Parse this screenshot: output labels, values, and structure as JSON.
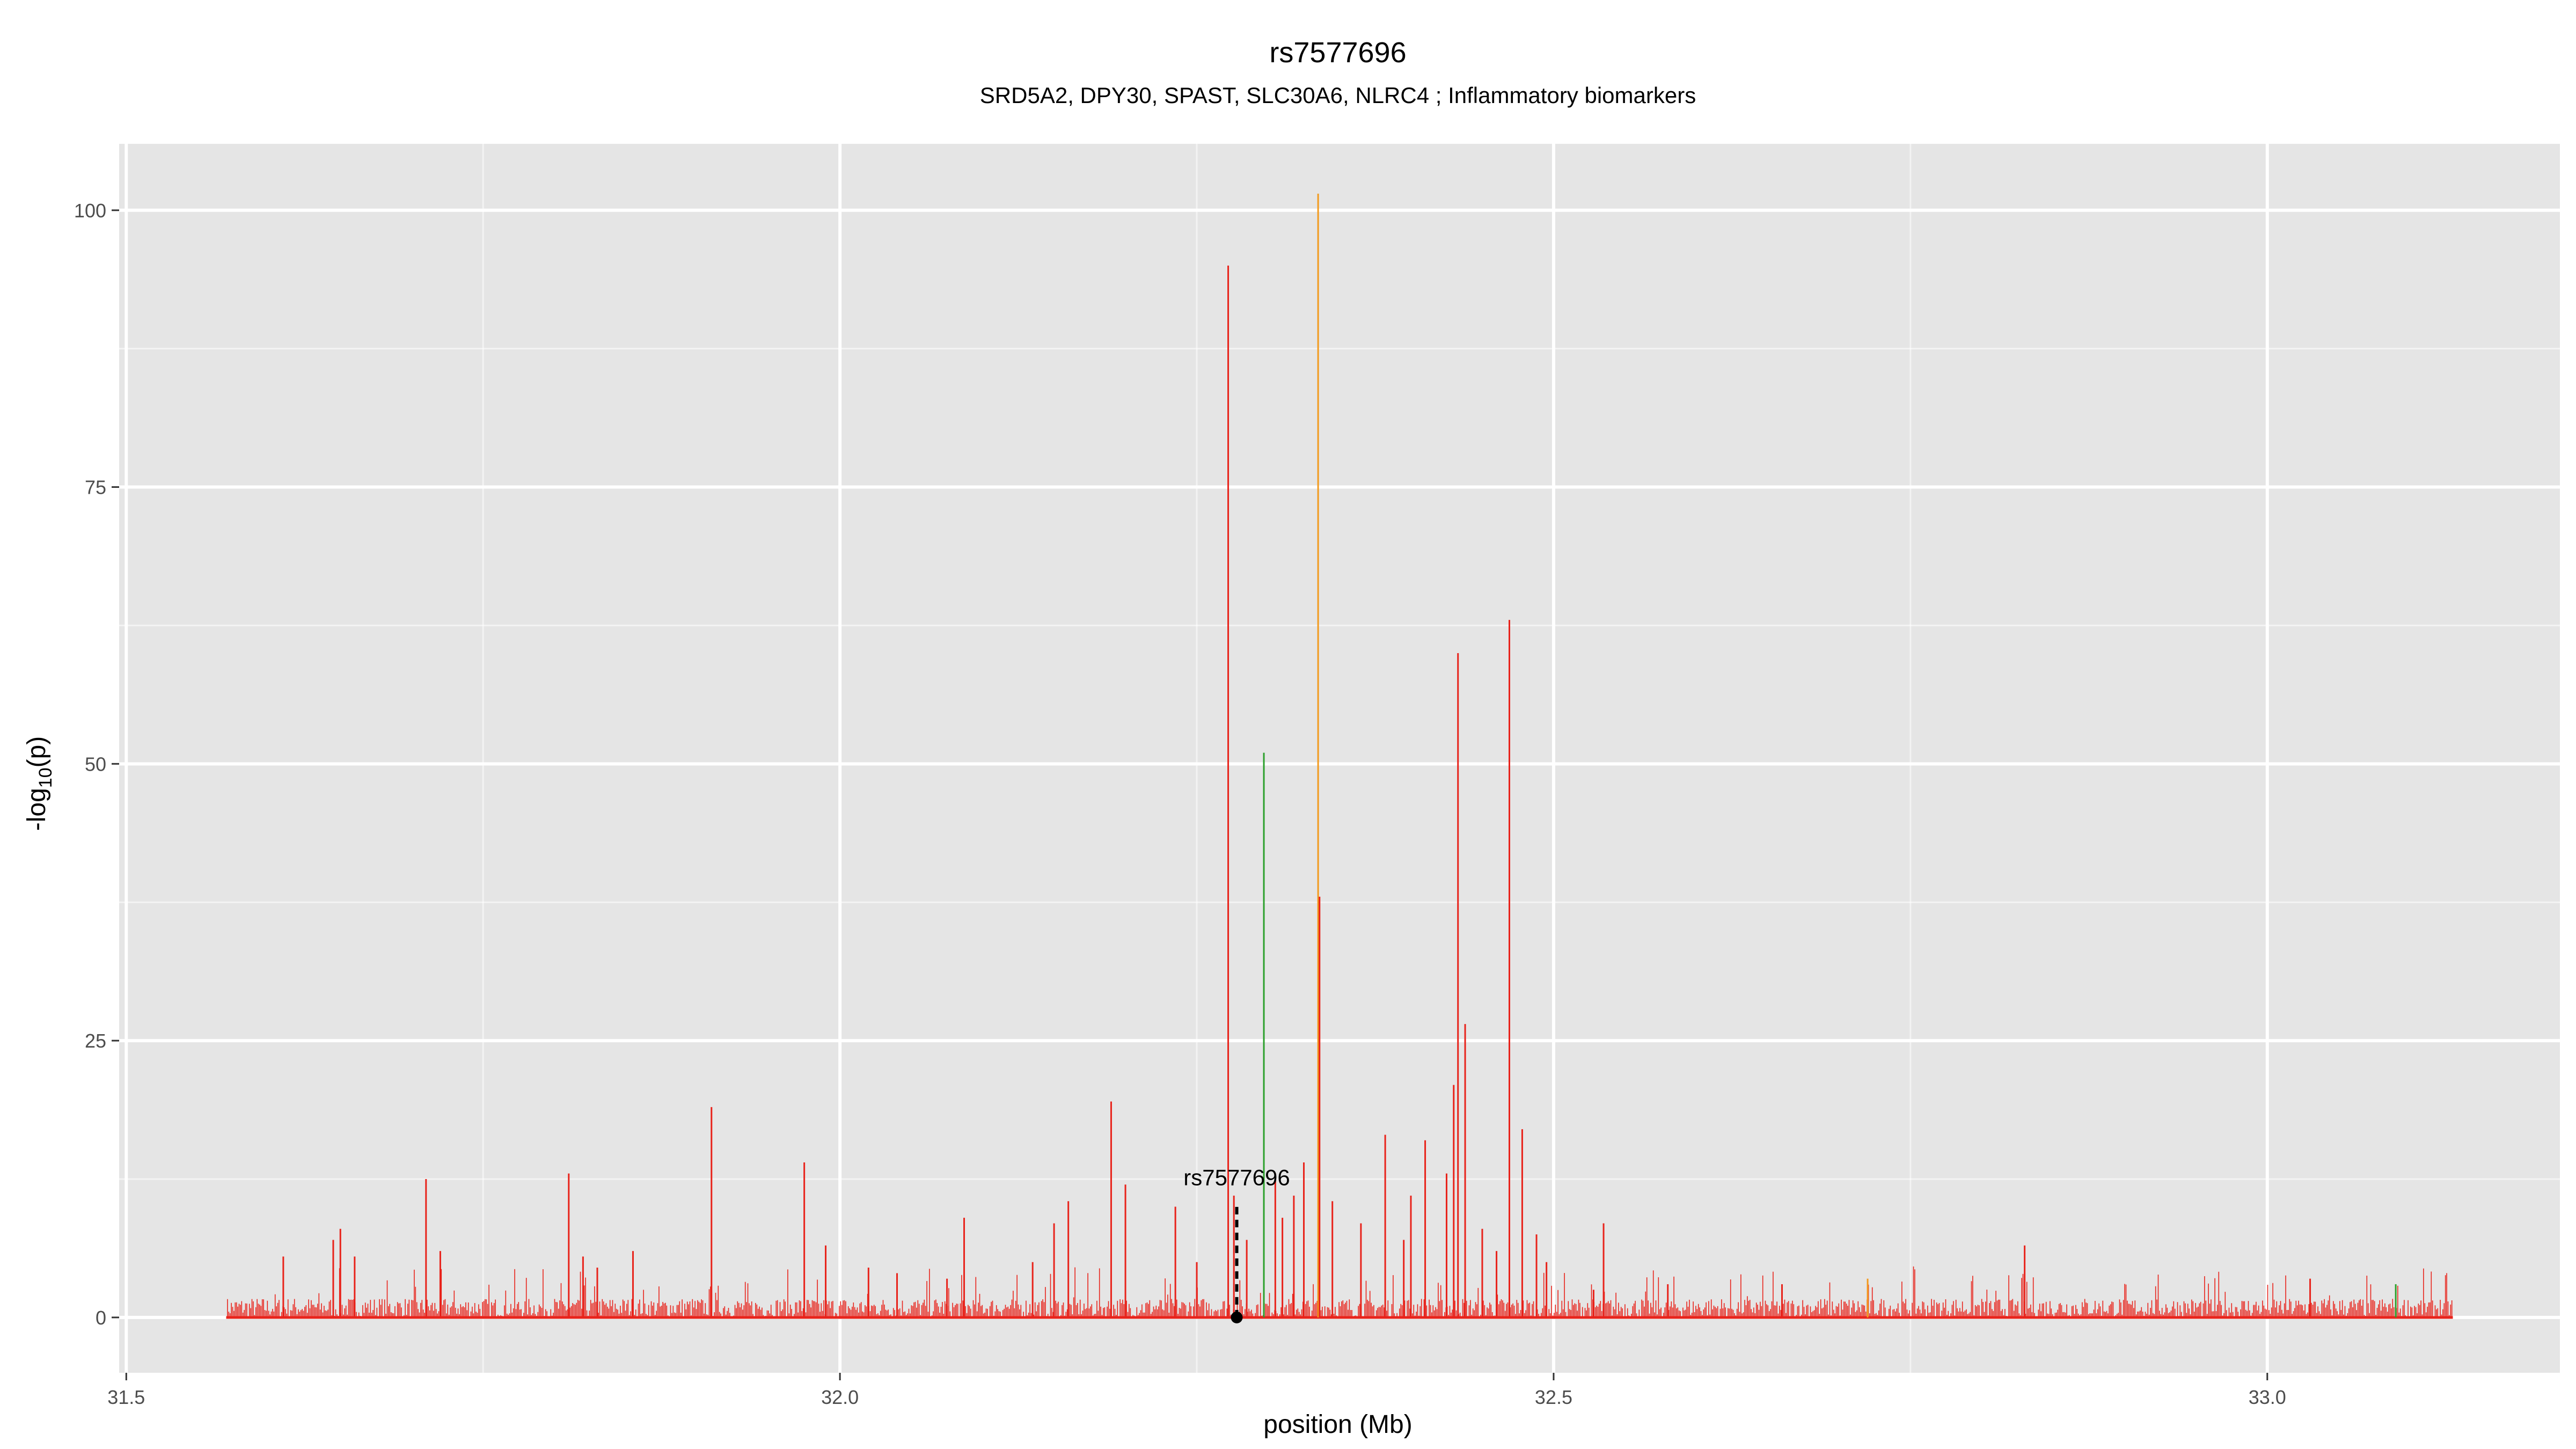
{
  "chart_data": {
    "type": "line",
    "title": "rs7577696",
    "subtitle": "SRD5A2, DPY30, SPAST, SLC30A6, NLRC4 ; Inflammatory biomarkers",
    "xlabel": "position (Mb)",
    "ylabel": {
      "main": "-log",
      "sub": "10",
      "tail": "(p)"
    },
    "xlim": [
      31.495,
      33.205
    ],
    "ylim": [
      -5,
      106
    ],
    "x_ticks": [
      {
        "value": 31.5,
        "label": "31.5"
      },
      {
        "value": 32.0,
        "label": "32.0"
      },
      {
        "value": 32.5,
        "label": "32.5"
      },
      {
        "value": 33.0,
        "label": "33.0"
      }
    ],
    "y_ticks": [
      {
        "value": 0,
        "label": "0"
      },
      {
        "value": 25,
        "label": "25"
      },
      {
        "value": 50,
        "label": "50"
      },
      {
        "value": 75,
        "label": "75"
      },
      {
        "value": 100,
        "label": "100"
      }
    ],
    "grid": true,
    "x_range": [
      31.57,
      33.13
    ],
    "colors": {
      "panel": "#e5e5e5",
      "grid": "#ffffff",
      "red": "#e8231b",
      "orange": "#f39a1e",
      "green": "#2ca02c",
      "marker": "#000000"
    },
    "peaks": [
      {
        "x": 31.61,
        "y": 5.5,
        "color": "red"
      },
      {
        "x": 31.645,
        "y": 7,
        "color": "red"
      },
      {
        "x": 31.65,
        "y": 8,
        "color": "red"
      },
      {
        "x": 31.66,
        "y": 5.5,
        "color": "red"
      },
      {
        "x": 31.71,
        "y": 12.5,
        "color": "red"
      },
      {
        "x": 31.72,
        "y": 6,
        "color": "red"
      },
      {
        "x": 31.81,
        "y": 13,
        "color": "red"
      },
      {
        "x": 31.82,
        "y": 5.5,
        "color": "red"
      },
      {
        "x": 31.83,
        "y": 4.5,
        "color": "red"
      },
      {
        "x": 31.855,
        "y": 6,
        "color": "red"
      },
      {
        "x": 31.91,
        "y": 19,
        "color": "red"
      },
      {
        "x": 31.975,
        "y": 14,
        "color": "red"
      },
      {
        "x": 31.99,
        "y": 6.5,
        "color": "red"
      },
      {
        "x": 32.02,
        "y": 4.5,
        "color": "red"
      },
      {
        "x": 32.04,
        "y": 4,
        "color": "red"
      },
      {
        "x": 32.075,
        "y": 3.5,
        "color": "red"
      },
      {
        "x": 32.087,
        "y": 9,
        "color": "red"
      },
      {
        "x": 32.135,
        "y": 5,
        "color": "red"
      },
      {
        "x": 32.15,
        "y": 8.5,
        "color": "red"
      },
      {
        "x": 32.16,
        "y": 10.5,
        "color": "red"
      },
      {
        "x": 32.19,
        "y": 19.5,
        "color": "red"
      },
      {
        "x": 32.2,
        "y": 12,
        "color": "red"
      },
      {
        "x": 32.235,
        "y": 10,
        "color": "red"
      },
      {
        "x": 32.25,
        "y": 5,
        "color": "red"
      },
      {
        "x": 32.272,
        "y": 95,
        "color": "red"
      },
      {
        "x": 32.276,
        "y": 11,
        "color": "red"
      },
      {
        "x": 32.285,
        "y": 7,
        "color": "red"
      },
      {
        "x": 32.297,
        "y": 51,
        "color": "green"
      },
      {
        "x": 32.305,
        "y": 13,
        "color": "red"
      },
      {
        "x": 32.31,
        "y": 9,
        "color": "red"
      },
      {
        "x": 32.318,
        "y": 11,
        "color": "red"
      },
      {
        "x": 32.325,
        "y": 14,
        "color": "red"
      },
      {
        "x": 32.335,
        "y": 101.5,
        "color": "orange"
      },
      {
        "x": 32.336,
        "y": 38,
        "color": "red"
      },
      {
        "x": 32.345,
        "y": 10.5,
        "color": "red"
      },
      {
        "x": 32.365,
        "y": 8.5,
        "color": "red"
      },
      {
        "x": 32.382,
        "y": 16.5,
        "color": "red"
      },
      {
        "x": 32.395,
        "y": 7,
        "color": "red"
      },
      {
        "x": 32.4,
        "y": 11,
        "color": "red"
      },
      {
        "x": 32.41,
        "y": 16,
        "color": "red"
      },
      {
        "x": 32.425,
        "y": 13,
        "color": "red"
      },
      {
        "x": 32.43,
        "y": 21,
        "color": "red"
      },
      {
        "x": 32.433,
        "y": 60,
        "color": "red"
      },
      {
        "x": 32.438,
        "y": 26.5,
        "color": "red"
      },
      {
        "x": 32.45,
        "y": 8,
        "color": "red"
      },
      {
        "x": 32.46,
        "y": 6,
        "color": "red"
      },
      {
        "x": 32.469,
        "y": 63,
        "color": "red"
      },
      {
        "x": 32.478,
        "y": 17,
        "color": "red"
      },
      {
        "x": 32.488,
        "y": 7.5,
        "color": "red"
      },
      {
        "x": 32.495,
        "y": 5,
        "color": "red"
      },
      {
        "x": 32.528,
        "y": 2.5,
        "color": "red"
      },
      {
        "x": 32.535,
        "y": 8.5,
        "color": "red"
      },
      {
        "x": 32.58,
        "y": 3,
        "color": "red"
      },
      {
        "x": 32.66,
        "y": 3,
        "color": "red"
      },
      {
        "x": 32.72,
        "y": 3.5,
        "color": "orange"
      },
      {
        "x": 32.83,
        "y": 6.5,
        "color": "red"
      },
      {
        "x": 33.03,
        "y": 3.5,
        "color": "red"
      },
      {
        "x": 33.09,
        "y": 3,
        "color": "green"
      }
    ],
    "annotation": {
      "label": "rs7577696",
      "x": 32.278,
      "y": 0,
      "line_to_y": 10
    }
  }
}
